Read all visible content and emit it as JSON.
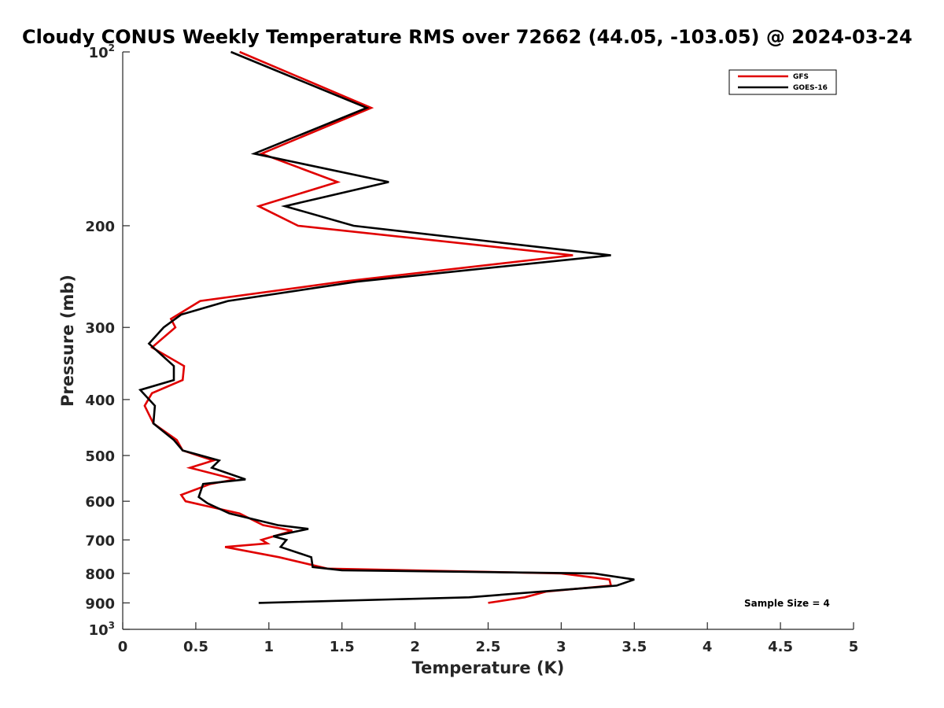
{
  "chart_data": {
    "type": "line",
    "title": "Cloudy CONUS Weekly Temperature RMS over 72662 (44.05, -103.05) @ 2024-03-24",
    "xlabel": "Temperature (K)",
    "ylabel": "Pressure (mb)",
    "xlim": [
      0,
      5
    ],
    "ylim": [
      100,
      1000
    ],
    "yscale": "log",
    "y_reversed": true,
    "x_ticks": [
      "0",
      "0.5",
      "1",
      "1.5",
      "2",
      "2.5",
      "3",
      "3.5",
      "4",
      "4.5",
      "5"
    ],
    "y_ticks": [
      {
        "value": 100,
        "base": "10",
        "exp": "2"
      },
      {
        "value": 200,
        "label": "200"
      },
      {
        "value": 300,
        "label": "300"
      },
      {
        "value": 400,
        "label": "400"
      },
      {
        "value": 500,
        "label": "500"
      },
      {
        "value": 600,
        "label": "600"
      },
      {
        "value": 700,
        "label": "700"
      },
      {
        "value": 800,
        "label": "800"
      },
      {
        "value": 900,
        "label": "900"
      },
      {
        "value": 1000,
        "base": "10",
        "exp": "3"
      }
    ],
    "legend": {
      "placement": "top-right"
    },
    "annotation": "Sample Size = 4",
    "series": [
      {
        "name": "GFS",
        "color": "#e00000",
        "points": [
          {
            "x": 0.8,
            "p": 100
          },
          {
            "x": 1.7,
            "p": 125
          },
          {
            "x": 0.95,
            "p": 150
          },
          {
            "x": 1.47,
            "p": 168
          },
          {
            "x": 0.93,
            "p": 185
          },
          {
            "x": 1.2,
            "p": 200
          },
          {
            "x": 3.08,
            "p": 225
          },
          {
            "x": 1.5,
            "p": 250
          },
          {
            "x": 0.53,
            "p": 270
          },
          {
            "x": 0.33,
            "p": 290
          },
          {
            "x": 0.36,
            "p": 300
          },
          {
            "x": 0.2,
            "p": 325
          },
          {
            "x": 0.42,
            "p": 350
          },
          {
            "x": 0.41,
            "p": 370
          },
          {
            "x": 0.2,
            "p": 390
          },
          {
            "x": 0.15,
            "p": 410
          },
          {
            "x": 0.21,
            "p": 440
          },
          {
            "x": 0.37,
            "p": 470
          },
          {
            "x": 0.41,
            "p": 490
          },
          {
            "x": 0.62,
            "p": 510
          },
          {
            "x": 0.46,
            "p": 525
          },
          {
            "x": 0.77,
            "p": 550
          },
          {
            "x": 0.6,
            "p": 560
          },
          {
            "x": 0.4,
            "p": 585
          },
          {
            "x": 0.43,
            "p": 600
          },
          {
            "x": 0.8,
            "p": 630
          },
          {
            "x": 0.96,
            "p": 660
          },
          {
            "x": 1.16,
            "p": 675
          },
          {
            "x": 0.95,
            "p": 700
          },
          {
            "x": 0.99,
            "p": 710
          },
          {
            "x": 0.7,
            "p": 720
          },
          {
            "x": 1.07,
            "p": 750
          },
          {
            "x": 1.4,
            "p": 785
          },
          {
            "x": 3.0,
            "p": 800
          },
          {
            "x": 3.33,
            "p": 820
          },
          {
            "x": 3.34,
            "p": 840
          },
          {
            "x": 2.9,
            "p": 860
          },
          {
            "x": 2.75,
            "p": 880
          },
          {
            "x": 2.5,
            "p": 900
          }
        ]
      },
      {
        "name": "GOES-16",
        "color": "#000000",
        "points": [
          {
            "x": 0.74,
            "p": 100
          },
          {
            "x": 1.67,
            "p": 125
          },
          {
            "x": 0.9,
            "p": 150
          },
          {
            "x": 1.82,
            "p": 168
          },
          {
            "x": 1.11,
            "p": 185
          },
          {
            "x": 1.58,
            "p": 200
          },
          {
            "x": 3.34,
            "p": 225
          },
          {
            "x": 1.6,
            "p": 250
          },
          {
            "x": 0.72,
            "p": 270
          },
          {
            "x": 0.4,
            "p": 285
          },
          {
            "x": 0.28,
            "p": 300
          },
          {
            "x": 0.18,
            "p": 320
          },
          {
            "x": 0.35,
            "p": 350
          },
          {
            "x": 0.35,
            "p": 370
          },
          {
            "x": 0.12,
            "p": 385
          },
          {
            "x": 0.22,
            "p": 410
          },
          {
            "x": 0.21,
            "p": 440
          },
          {
            "x": 0.35,
            "p": 470
          },
          {
            "x": 0.41,
            "p": 490
          },
          {
            "x": 0.66,
            "p": 510
          },
          {
            "x": 0.61,
            "p": 525
          },
          {
            "x": 0.84,
            "p": 550
          },
          {
            "x": 0.55,
            "p": 560
          },
          {
            "x": 0.52,
            "p": 590
          },
          {
            "x": 0.58,
            "p": 605
          },
          {
            "x": 0.73,
            "p": 630
          },
          {
            "x": 1.06,
            "p": 660
          },
          {
            "x": 1.27,
            "p": 670
          },
          {
            "x": 1.03,
            "p": 690
          },
          {
            "x": 1.12,
            "p": 700
          },
          {
            "x": 1.08,
            "p": 720
          },
          {
            "x": 1.29,
            "p": 750
          },
          {
            "x": 1.3,
            "p": 780
          },
          {
            "x": 1.5,
            "p": 790
          },
          {
            "x": 3.22,
            "p": 800
          },
          {
            "x": 3.5,
            "p": 820
          },
          {
            "x": 3.38,
            "p": 840
          },
          {
            "x": 2.37,
            "p": 880
          },
          {
            "x": 0.93,
            "p": 900
          }
        ]
      }
    ]
  }
}
